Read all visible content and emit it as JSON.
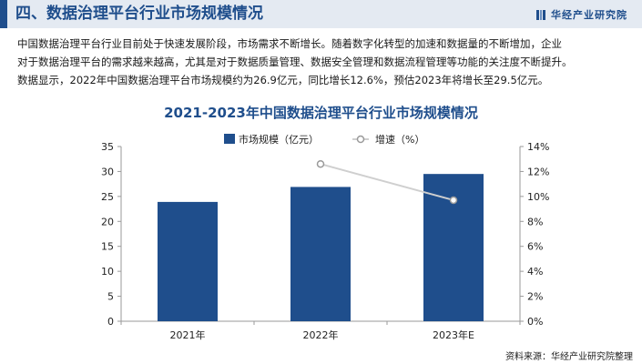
{
  "header": {
    "title": "四、数据治理平台行业市场规模情况",
    "brand": "华经产业研究院"
  },
  "paragraph": {
    "lines": [
      "中国数据治理平台行业目前处于快速发展阶段，市场需求不断增长。随着数字化转型的加速和数据量的不断增加，企业",
      "对于数据治理平台的需求越来越高，尤其是对于数据质量管理、数据安全管理和数据流程管理等功能的关注度不断提升。",
      "数据显示，2022年中国数据治理平台市场规模约为26.9亿元，同比增长12.6%，预估2023年将增长至29.5亿元。"
    ]
  },
  "chart_data": {
    "type": "bar",
    "title": "2021-2023年中国数据治理平台行业市场规模情况",
    "categories": [
      "2021年",
      "2022年",
      "2023年E"
    ],
    "series": [
      {
        "name": "市场规模（亿元）",
        "type": "bar",
        "axis": "left",
        "values": [
          23.9,
          26.9,
          29.5
        ]
      },
      {
        "name": "增速（%）",
        "type": "line",
        "axis": "right",
        "values": [
          null,
          12.6,
          9.7
        ]
      }
    ],
    "y_left": {
      "min": 0,
      "max": 35,
      "step": 5,
      "ticks": [
        "0",
        "5",
        "10",
        "15",
        "20",
        "25",
        "30",
        "35"
      ]
    },
    "y_right": {
      "min": 0,
      "max": 14,
      "step": 2,
      "ticks": [
        "0%",
        "2%",
        "4%",
        "6%",
        "8%",
        "10%",
        "12%",
        "14%"
      ]
    },
    "legend_position": "top",
    "grid": false,
    "colors": {
      "bar": "#1f4e8c",
      "line": "#cfcfcf",
      "marker_fill": "#ffffff",
      "marker_stroke": "#9a9a9a"
    }
  },
  "source": "资料来源：华经产业研究院整理"
}
